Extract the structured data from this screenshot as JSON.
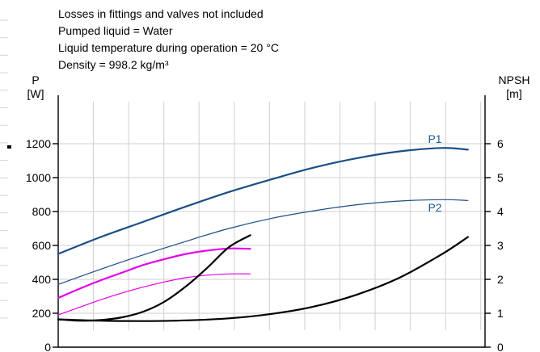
{
  "chart_data": {
    "type": "line",
    "notes": [
      "Losses in fittings and valves not included",
      "Pumped liquid = Water",
      "Liquid temperature during operation = 20 °C",
      "Density = 998.2 kg/m³"
    ],
    "y_left": {
      "label_line1": "P",
      "label_line2": "[W]",
      "ticks": [
        "0",
        "200",
        "400",
        "600",
        "800",
        "1000",
        "1200"
      ],
      "range": [
        0,
        1400
      ]
    },
    "y_right": {
      "label_line1": "NPSH",
      "label_line2": "[m]",
      "ticks": [
        "0",
        "1",
        "2",
        "3",
        "4",
        "5",
        "6"
      ],
      "range": [
        0,
        7
      ]
    },
    "grid": true,
    "series": [
      {
        "name": "P1",
        "axis": "left",
        "color": "#1a4f86",
        "width": 2.2,
        "x": [
          0.0,
          0.1,
          0.2,
          0.3,
          0.4,
          0.5,
          0.6,
          0.7,
          0.8,
          0.9,
          0.96
        ],
        "y": [
          550,
          650,
          740,
          830,
          915,
          990,
          1060,
          1115,
          1155,
          1175,
          1165
        ]
      },
      {
        "name": "P2",
        "axis": "left",
        "color": "#1a4f86",
        "width": 1.2,
        "x": [
          0.0,
          0.1,
          0.2,
          0.3,
          0.4,
          0.5,
          0.6,
          0.7,
          0.8,
          0.9,
          0.96
        ],
        "y": [
          370,
          460,
          545,
          625,
          700,
          760,
          805,
          840,
          862,
          870,
          865
        ]
      },
      {
        "name": "",
        "axis": "left",
        "color": "#e600e6",
        "width": 2.2,
        "x": [
          0.0,
          0.05,
          0.1,
          0.15,
          0.2,
          0.25,
          0.3,
          0.35,
          0.4,
          0.45
        ],
        "y": [
          290,
          345,
          395,
          440,
          485,
          520,
          550,
          570,
          582,
          580
        ]
      },
      {
        "name": "",
        "axis": "left",
        "color": "#e600e6",
        "width": 1.2,
        "x": [
          0.0,
          0.05,
          0.1,
          0.15,
          0.2,
          0.25,
          0.3,
          0.35,
          0.4,
          0.45
        ],
        "y": [
          190,
          235,
          280,
          320,
          355,
          385,
          410,
          425,
          432,
          432
        ]
      },
      {
        "name": "",
        "axis": "right",
        "color": "#000000",
        "width": 2.2,
        "x": [
          0.0,
          0.05,
          0.1,
          0.15,
          0.2,
          0.25,
          0.3,
          0.35,
          0.4,
          0.45
        ],
        "y": [
          0.82,
          0.78,
          0.8,
          0.88,
          1.05,
          1.35,
          1.8,
          2.35,
          2.95,
          3.3
        ]
      },
      {
        "name": "",
        "axis": "right",
        "color": "#000000",
        "width": 2.2,
        "x": [
          0.0,
          0.1,
          0.2,
          0.3,
          0.4,
          0.5,
          0.6,
          0.7,
          0.8,
          0.9,
          0.96
        ],
        "y": [
          0.82,
          0.78,
          0.77,
          0.79,
          0.85,
          0.98,
          1.2,
          1.55,
          2.05,
          2.75,
          3.25
        ]
      }
    ]
  }
}
